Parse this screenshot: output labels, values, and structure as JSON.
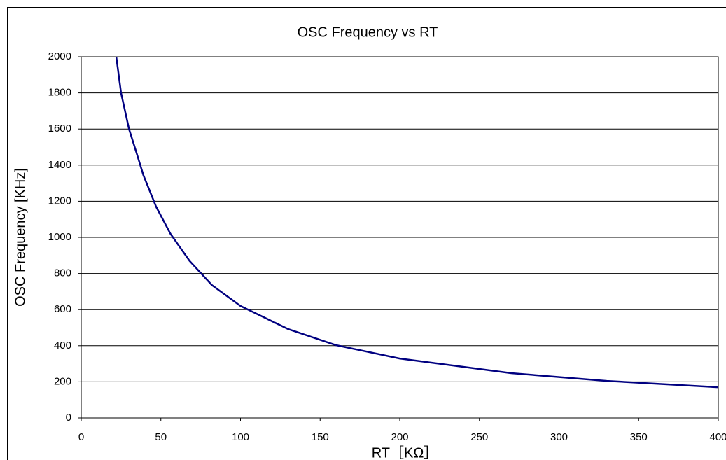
{
  "chart_data": {
    "type": "line",
    "title": "OSC Frequency vs RT",
    "x_label": "RT［KΩ］",
    "y_label": "OSC Frequency [KHz]",
    "x": [
      22,
      25,
      30,
      35,
      39,
      47,
      56,
      68,
      82,
      100,
      130,
      160,
      200,
      270,
      330,
      400
    ],
    "values": [
      2000,
      1800,
      1600,
      1460,
      1345,
      1170,
      1020,
      870,
      736,
      620,
      492,
      403,
      329,
      248,
      205,
      170
    ],
    "color": "#000080",
    "xlim": [
      0,
      400
    ],
    "xticks": [
      0,
      50,
      100,
      150,
      200,
      250,
      300,
      350,
      400
    ],
    "ylim": [
      0,
      2000
    ],
    "yticks": [
      0,
      200,
      400,
      600,
      800,
      1000,
      1200,
      1400,
      1600,
      1800,
      2000
    ],
    "grid": true
  }
}
